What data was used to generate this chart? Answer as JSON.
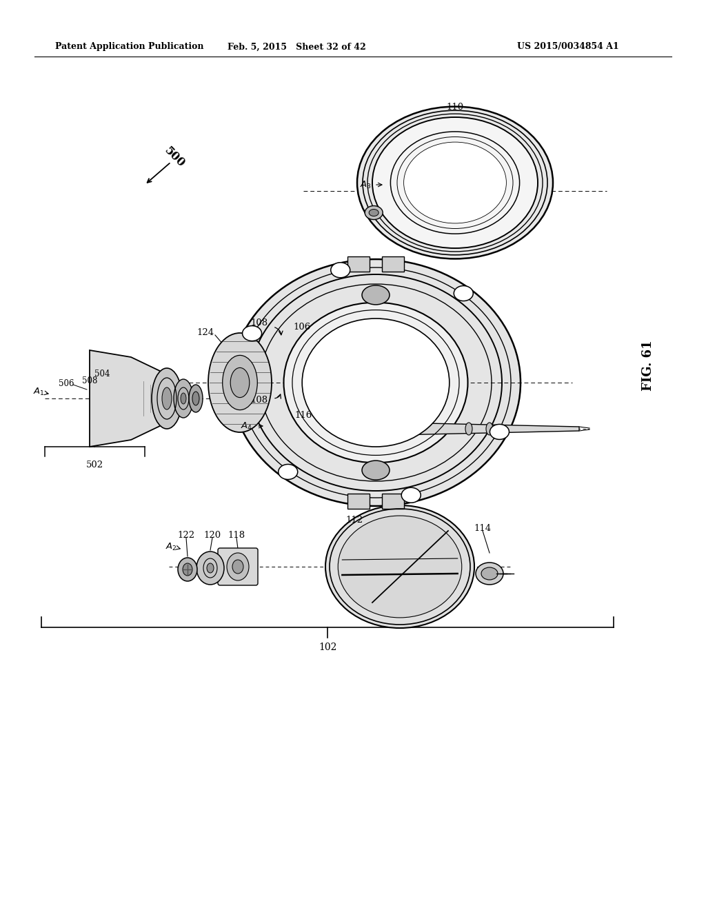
{
  "background_color": "#ffffff",
  "header_left": "Patent Application Publication",
  "header_center": "Feb. 5, 2015   Sheet 32 of 42",
  "header_right": "US 2015/0034854 A1",
  "fig_label": "FIG. 61"
}
